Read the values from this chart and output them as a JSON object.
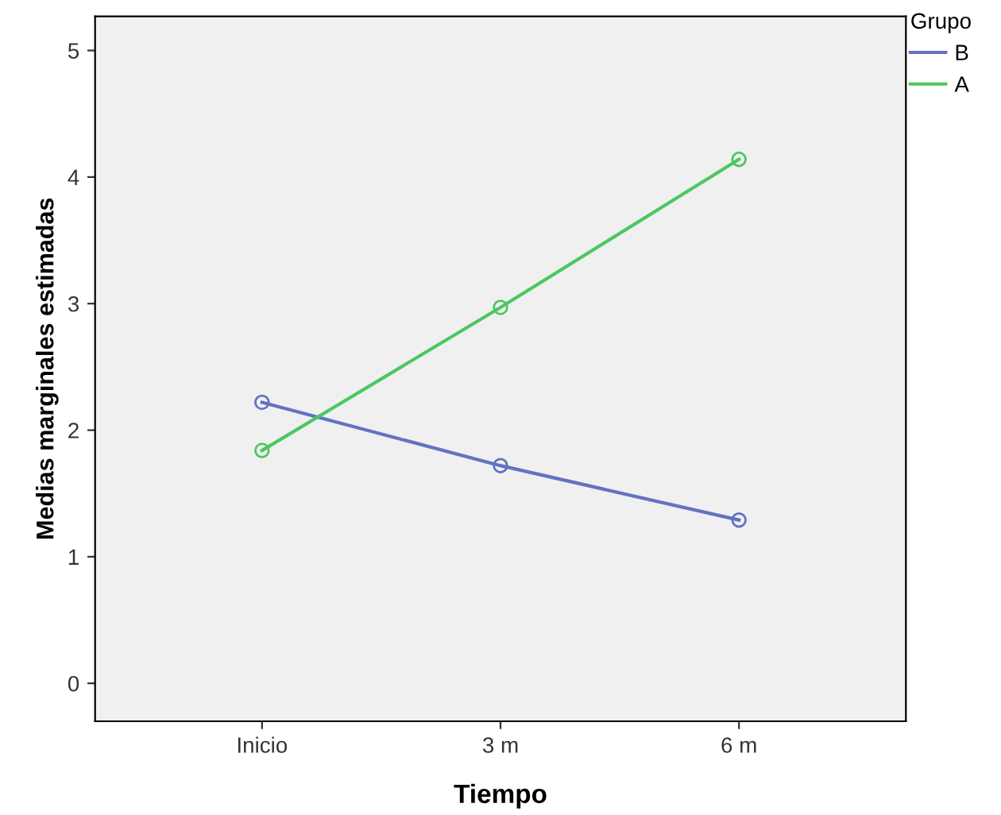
{
  "chart_data": {
    "type": "line",
    "xlabel": "Tiempo",
    "ylabel": "Medias marginales estimadas",
    "legend_title": "Grupo",
    "categories": [
      "Inicio",
      "3 m",
      "6 m"
    ],
    "series": [
      {
        "name": "B",
        "color": "#6272c4",
        "values": [
          2.22,
          1.72,
          1.29
        ]
      },
      {
        "name": "A",
        "color": "#4cc75f",
        "values": [
          1.84,
          2.97,
          4.14
        ]
      }
    ],
    "ylim": [
      -0.3,
      5.27
    ],
    "yticks": [
      0,
      1,
      2,
      3,
      4,
      5
    ],
    "marker": "circle",
    "legend": "top right",
    "grid": false
  }
}
